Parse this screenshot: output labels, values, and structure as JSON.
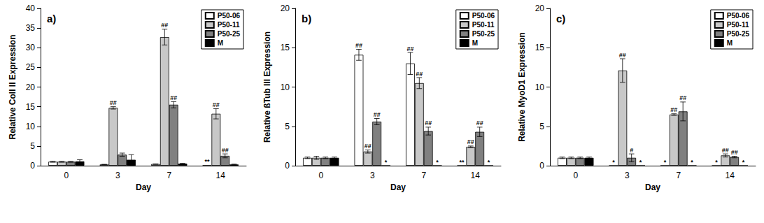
{
  "chart_data": [
    {
      "type": "bar",
      "title": "a)",
      "xlabel": "Day",
      "ylabel": "Relative Coll II Expression",
      "categories": [
        "0",
        "3",
        "7",
        "14"
      ],
      "series": [
        {
          "name": "P50-06",
          "color": "#ffffff",
          "values": [
            1.0,
            0.3,
            0.4,
            0.05
          ],
          "errors": [
            0.1,
            0.05,
            0.05,
            null
          ],
          "annotations": [
            null,
            null,
            null,
            "**"
          ]
        },
        {
          "name": "P50-11",
          "color": "#c8c8c8",
          "values": [
            1.0,
            14.7,
            32.7,
            13.2
          ],
          "errors": [
            0.1,
            0.3,
            2.0,
            1.3
          ],
          "annotations": [
            null,
            "##",
            "##",
            "##"
          ]
        },
        {
          "name": "P50-25",
          "color": "#808080",
          "values": [
            1.0,
            2.8,
            15.5,
            2.5
          ],
          "errors": [
            0.1,
            0.4,
            0.8,
            0.5
          ],
          "annotations": [
            null,
            null,
            "##",
            "##"
          ]
        },
        {
          "name": "M",
          "color": "#000000",
          "values": [
            1.1,
            1.5,
            0.5,
            0.3
          ],
          "errors": [
            0.4,
            1.3,
            0.1,
            0.1
          ],
          "annotations": [
            null,
            null,
            null,
            null
          ]
        }
      ],
      "ylim": [
        0,
        40
      ],
      "yticks": [
        0,
        5,
        10,
        15,
        20,
        25,
        30,
        35,
        40
      ],
      "grid": false,
      "legend": "top-right"
    },
    {
      "type": "bar",
      "title": "b)",
      "xlabel": "Day",
      "ylabel": "Relative ßTub III Expression",
      "categories": [
        "0",
        "3",
        "7",
        "14"
      ],
      "series": [
        {
          "name": "P50-06",
          "color": "#ffffff",
          "values": [
            1.0,
            14.1,
            13.0,
            0
          ],
          "errors": [
            0.1,
            0.7,
            1.4,
            null
          ],
          "annotations": [
            null,
            "##",
            "##",
            "**"
          ]
        },
        {
          "name": "P50-11",
          "color": "#c8c8c8",
          "values": [
            1.0,
            1.8,
            10.5,
            2.4
          ],
          "errors": [
            0.2,
            0.2,
            0.7,
            0.1
          ],
          "annotations": [
            null,
            "##",
            "##",
            "##"
          ]
        },
        {
          "name": "P50-25",
          "color": "#808080",
          "values": [
            1.0,
            5.6,
            4.4,
            4.3
          ],
          "errors": [
            0.1,
            0.4,
            0.5,
            0.6
          ],
          "annotations": [
            null,
            "##",
            "##",
            "##"
          ]
        },
        {
          "name": "M",
          "color": "#000000",
          "values": [
            1.0,
            0,
            0,
            0
          ],
          "errors": [
            0.1,
            null,
            null,
            null
          ],
          "annotations": [
            null,
            "*",
            "*",
            "*"
          ]
        }
      ],
      "ylim": [
        0,
        20
      ],
      "yticks": [
        0,
        5,
        10,
        15,
        20
      ],
      "grid": false,
      "legend": "top-right"
    },
    {
      "type": "bar",
      "title": "c)",
      "xlabel": "Day",
      "ylabel": "Relative MyoD1 Expression",
      "categories": [
        "0",
        "3",
        "7",
        "14"
      ],
      "series": [
        {
          "name": "P50-06",
          "color": "#ffffff",
          "values": [
            1.0,
            0,
            0,
            0
          ],
          "errors": [
            0.1,
            null,
            null,
            null
          ],
          "annotations": [
            null,
            "*",
            "*",
            "*"
          ]
        },
        {
          "name": "P50-11",
          "color": "#c8c8c8",
          "values": [
            1.0,
            12.1,
            6.5,
            1.3
          ],
          "errors": [
            0.1,
            1.5,
            0.1,
            0.2
          ],
          "annotations": [
            null,
            "##",
            "##",
            "##"
          ]
        },
        {
          "name": "P50-25",
          "color": "#808080",
          "values": [
            1.0,
            1.0,
            6.9,
            1.1
          ],
          "errors": [
            0.1,
            0.5,
            1.2,
            0.1
          ],
          "annotations": [
            null,
            "#",
            "##",
            "##"
          ]
        },
        {
          "name": "M",
          "color": "#000000",
          "values": [
            1.0,
            0,
            0,
            0
          ],
          "errors": [
            0.1,
            null,
            null,
            null
          ],
          "annotations": [
            null,
            "*",
            "*",
            "*"
          ]
        }
      ],
      "ylim": [
        0,
        20
      ],
      "yticks": [
        0,
        5,
        10,
        15,
        20
      ],
      "grid": false,
      "legend": "top-right"
    }
  ]
}
